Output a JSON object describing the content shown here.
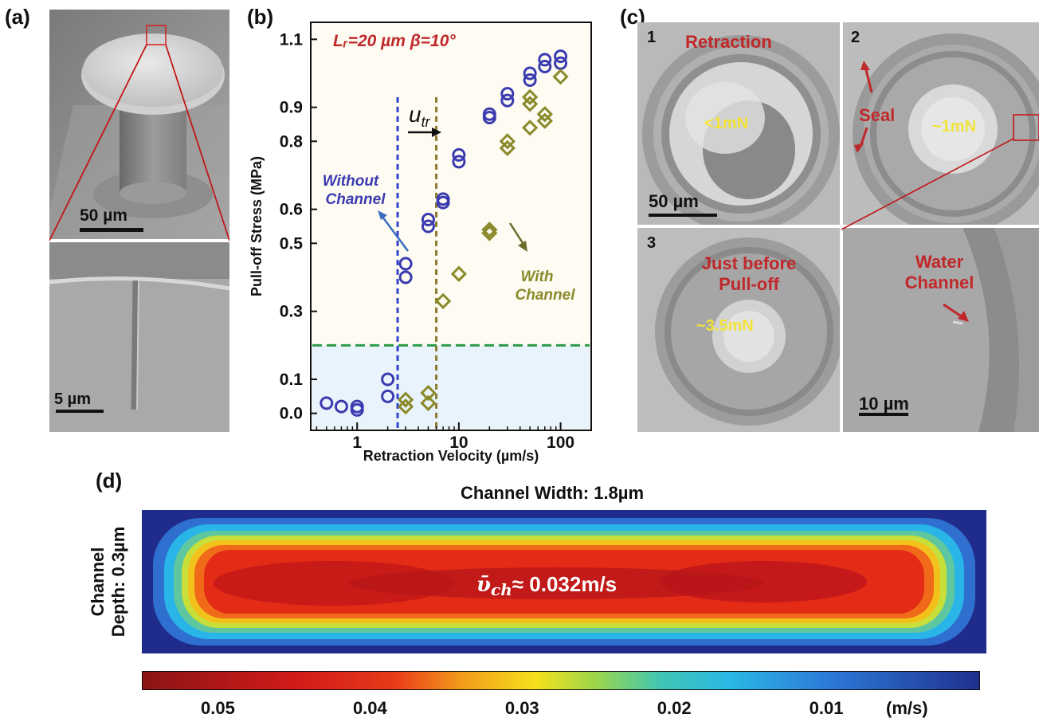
{
  "panels": {
    "a": {
      "label": "(a)",
      "scalebar_top": "50 µm",
      "scalebar_bottom": "5 µm"
    },
    "b": {
      "label": "(b)",
      "annotation_param": "Lᵣ=20 µm β=10°",
      "utr_label": "u",
      "utr_sub": "tr",
      "without_channel": [
        "Without",
        "Channel"
      ],
      "with_channel": [
        "With",
        "Channel"
      ]
    },
    "c": {
      "label": "(c)",
      "frames": [
        {
          "index": "1",
          "title": "Retraction",
          "force": "<1mN",
          "scalebar": "50 µm"
        },
        {
          "index": "2",
          "title": "Seal",
          "force": "~1mN"
        },
        {
          "index": "3",
          "title_lines": [
            "Just before",
            "Pull-off"
          ],
          "force": "~3.5mN"
        },
        {
          "title_lines": [
            "Water",
            "Channel"
          ],
          "scalebar": "10 µm"
        }
      ]
    },
    "d": {
      "label": "(d)",
      "title": "Channel Width: 1.8µm",
      "ylabel_lines": [
        "Channel",
        "Depth: 0.3µm"
      ],
      "velocity_symbol": "ῡ",
      "velocity_sub": "ch",
      "velocity_value": "≈ 0.032m/s",
      "colorbar": {
        "ticks": [
          "0.05",
          "0.04",
          "0.03",
          "0.02",
          "0.01"
        ],
        "unit": "(m/s)",
        "range": [
          0.0,
          0.055
        ]
      }
    }
  },
  "chart_data": {
    "type": "scatter",
    "xlabel": "Retraction Velocity (µm/s)",
    "ylabel": "Pull-off Stress (MPa)",
    "xscale": "log",
    "xlim": [
      0.35,
      200
    ],
    "ylim": [
      -0.05,
      1.15
    ],
    "x_ticks": [
      "1",
      "10",
      "100"
    ],
    "y_ticks": [
      "0.0",
      "0.1",
      "0.3",
      "0.5",
      "0.6",
      "0.8",
      "0.9",
      "1.1"
    ],
    "y_tick_values": [
      0.0,
      0.1,
      0.3,
      0.5,
      0.6,
      0.8,
      0.9,
      1.1
    ],
    "threshold_line": 0.2,
    "utr_lines": {
      "without": 2.5,
      "with": 6.0
    },
    "series": [
      {
        "name": "Without Channel",
        "color": "#3b3bb0",
        "marker": "circle",
        "points": [
          [
            0.5,
            0.03
          ],
          [
            0.7,
            0.02
          ],
          [
            1.0,
            0.02
          ],
          [
            1.0,
            0.01
          ],
          [
            2.0,
            0.05
          ],
          [
            2.0,
            0.1
          ],
          [
            3.0,
            0.4
          ],
          [
            3.0,
            0.44
          ],
          [
            5.0,
            0.55
          ],
          [
            5.0,
            0.57
          ],
          [
            7.0,
            0.62
          ],
          [
            7.0,
            0.63
          ],
          [
            10.0,
            0.74
          ],
          [
            10.0,
            0.76
          ],
          [
            20.0,
            0.87
          ],
          [
            20.0,
            0.88
          ],
          [
            30.0,
            0.92
          ],
          [
            30.0,
            0.94
          ],
          [
            50.0,
            0.98
          ],
          [
            50.0,
            1.0
          ],
          [
            70.0,
            1.02
          ],
          [
            70.0,
            1.04
          ],
          [
            100.0,
            1.03
          ],
          [
            100.0,
            1.05
          ]
        ]
      },
      {
        "name": "With Channel",
        "color": "#8a8a2a",
        "marker": "diamond",
        "points": [
          [
            3.0,
            0.02
          ],
          [
            3.0,
            0.04
          ],
          [
            5.0,
            0.03
          ],
          [
            5.0,
            0.06
          ],
          [
            7.0,
            0.33
          ],
          [
            10.0,
            0.41
          ],
          [
            20.0,
            0.53
          ],
          [
            20.0,
            0.54
          ],
          [
            30.0,
            0.78
          ],
          [
            30.0,
            0.8
          ],
          [
            50.0,
            0.84
          ],
          [
            50.0,
            0.91
          ],
          [
            50.0,
            0.93
          ],
          [
            70.0,
            0.86
          ],
          [
            70.0,
            0.88
          ],
          [
            100.0,
            0.99
          ]
        ]
      }
    ]
  },
  "colors": {
    "panel_label_red": "#c0282a",
    "yellow_text": "#f2e33a",
    "threshold_green": "#2e9a4a",
    "utr_blue": "#3344cc",
    "utr_olive": "#8a7a30",
    "plot_bg": "#fdfbf2",
    "shade": "#e8f3fb"
  }
}
